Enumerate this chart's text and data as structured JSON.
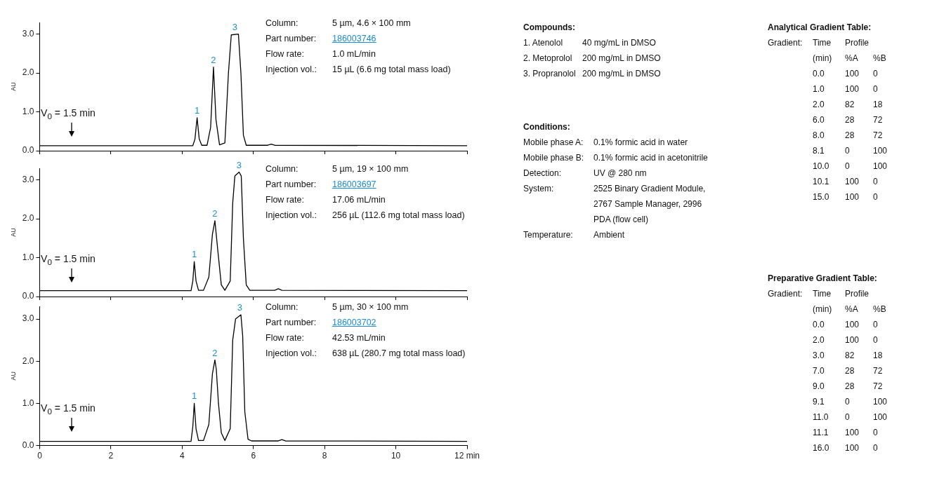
{
  "chart_data": [
    {
      "type": "line",
      "ylabel": "AU",
      "xlim": [
        0,
        12
      ],
      "xticks": [
        0,
        2,
        4,
        6,
        8,
        10,
        12
      ],
      "ylim": [
        0,
        3.3
      ],
      "yticks": [
        {
          "value": 0,
          "label": "0.0"
        },
        {
          "value": 1,
          "label": "1.0"
        },
        {
          "value": 2,
          "label": "2.0"
        },
        {
          "value": 3,
          "label": "3.0"
        }
      ],
      "tick_labels": "y",
      "grid": false,
      "legend": false,
      "series": [
        {
          "color": "#000000",
          "x": [
            0,
            4.3,
            4.36,
            4.42,
            4.48,
            4.55,
            4.7,
            4.8,
            4.88,
            4.95,
            5.05,
            5.2,
            5.3,
            5.38,
            5.58,
            5.65,
            5.72,
            5.8,
            6.4,
            6.5,
            6.6,
            12
          ],
          "values": [
            0.13,
            0.13,
            0.3,
            0.85,
            0.3,
            0.14,
            0.14,
            0.6,
            2.15,
            0.8,
            0.15,
            0.2,
            2.0,
            2.98,
            3.0,
            2.0,
            0.4,
            0.14,
            0.14,
            0.17,
            0.14,
            0.13
          ]
        }
      ],
      "annotations": [
        "V$_{0}$ = 1.5 min",
        "Column:\t5 µm, 4.6 × 100 mm",
        "Part number:\t186003746",
        "Flow rate:\t1.0 mL/min",
        "Injection vol.:\t15 µL (6.6 mg total mass load)",
        {
          "text": "1",
          "x": 4.42,
          "y": 0.85
        },
        {
          "text": "2",
          "x": 4.88,
          "y": 2.15
        },
        {
          "text": "3",
          "x": 5.48,
          "y": 3.0
        }
      ]
    },
    {
      "type": "line",
      "ylabel": "AU",
      "xlim": [
        0,
        12
      ],
      "xticks": [
        0,
        2,
        4,
        6,
        8,
        10,
        12
      ],
      "ylim": [
        0,
        3.3
      ],
      "yticks": [
        {
          "value": 0,
          "label": "0.0"
        },
        {
          "value": 1,
          "label": "1.0"
        },
        {
          "value": 2,
          "label": "2.0"
        },
        {
          "value": 3,
          "label": "3.0"
        }
      ],
      "tick_labels": "y",
      "grid": false,
      "legend": false,
      "series": [
        {
          "color": "#000000",
          "x": [
            0,
            4.25,
            4.3,
            4.34,
            4.39,
            4.46,
            4.6,
            4.75,
            4.85,
            4.92,
            5.0,
            5.1,
            5.2,
            5.35,
            5.42,
            5.48,
            5.6,
            5.66,
            5.72,
            5.8,
            5.9,
            6.6,
            6.7,
            6.8,
            12
          ],
          "values": [
            0.15,
            0.15,
            0.4,
            0.9,
            0.4,
            0.16,
            0.16,
            0.5,
            1.6,
            1.95,
            1.2,
            0.3,
            0.16,
            0.4,
            2.4,
            3.1,
            3.2,
            3.1,
            1.5,
            0.3,
            0.16,
            0.16,
            0.2,
            0.16,
            0.15
          ]
        }
      ],
      "annotations": [
        "V$_{0}$ = 1.5 min",
        "Column:\t5 µm, 19 × 100 mm",
        "Part number:\t186003697",
        "Flow rate:\t17.06 mL/min",
        "Injection vol.:\t256 µL (112.6 mg total mass load)",
        {
          "text": "1",
          "x": 4.34,
          "y": 0.9
        },
        {
          "text": "2",
          "x": 4.92,
          "y": 1.95
        },
        {
          "text": "3",
          "x": 5.6,
          "y": 3.2
        }
      ]
    },
    {
      "type": "line",
      "ylabel": "AU",
      "xlim": [
        0,
        12
      ],
      "xticks": [
        0,
        2,
        4,
        6,
        8,
        10,
        {
          "value": 12,
          "label": "12 min"
        }
      ],
      "ylim": [
        0,
        3.3
      ],
      "yticks": [
        {
          "value": 0,
          "label": "0.0"
        },
        {
          "value": 1,
          "label": "1.0"
        },
        {
          "value": 2,
          "label": "2.0"
        },
        {
          "value": 3,
          "label": "3.0"
        }
      ],
      "grid": false,
      "legend": false,
      "series": [
        {
          "color": "#000000",
          "x": [
            0,
            4.25,
            4.3,
            4.34,
            4.39,
            4.46,
            4.6,
            4.75,
            4.85,
            4.92,
            4.96,
            5.02,
            5.1,
            5.2,
            5.35,
            5.42,
            5.5,
            5.65,
            5.7,
            5.76,
            5.85,
            5.95,
            6.7,
            6.8,
            6.9,
            12
          ],
          "values": [
            0.1,
            0.1,
            0.45,
            1.0,
            0.4,
            0.12,
            0.12,
            0.5,
            1.7,
            2.03,
            1.8,
            1.0,
            0.3,
            0.12,
            0.4,
            2.5,
            3.0,
            3.1,
            2.6,
            0.8,
            0.15,
            0.11,
            0.11,
            0.14,
            0.11,
            0.1
          ]
        }
      ],
      "annotations": [
        "V$_{0}$ = 1.5 min",
        "Column:\t5 µm, 30 × 100 mm",
        "Part number:\t186003702",
        "Flow rate:\t42.53 mL/min",
        "Injection vol.:\t638 µL (280.7 mg total mass load)",
        {
          "text": "1",
          "x": 4.34,
          "y": 1.0
        },
        {
          "text": "2",
          "x": 4.92,
          "y": 2.03
        },
        {
          "text": "3",
          "x": 5.62,
          "y": 3.1
        }
      ]
    },
    {
      "type": "other",
      "title": "Compounds:",
      "annotations": [
        "1. Atenolol\t40 mg/mL in DMSO",
        "2. Metoprolol\t200 mg/mL in DMSO",
        "3. Propranolol\t200 mg/mL in DMSO"
      ]
    },
    {
      "type": "other",
      "title": "Conditions:",
      "annotations": [
        "Mobile phase A:\t0.1% formic acid in water",
        "Mobile phase B:\t0.1% formic acid in acetonitrile",
        "Detection:\tUV @ 280 nm",
        "System:\t2525 Binary Gradient Module,",
        "\t2767 Sample Manager, 2996",
        "\tPDA (flow cell)",
        "Temperature:\tAmbient"
      ]
    },
    {
      "type": "other",
      "title": "Analytical Gradient Table:",
      "annotations": [
        "Gradient:\tTime\tProfile",
        "\t(min)\t%A\t%B",
        "\t0.0\t100\t0",
        "\t1.0\t100\t0",
        "\t2.0\t82\t18",
        "\t6.0\t28\t72",
        "\t8.0\t28\t72",
        "\t8.1\t0\t100",
        "\t10.0\t0\t100",
        "\t10.1\t100\t0",
        "\t15.0\t100\t0"
      ]
    },
    {
      "type": "other",
      "title": "Preparative Gradient Table:",
      "annotations": [
        "Gradient:\tTime\tProfile",
        "\t(min)\t%A\t%B",
        "\t0.0\t100\t0",
        "\t2.0\t100\t0",
        "\t3.0\t82\t18",
        "\t7.0\t28\t72",
        "\t9.0\t28\t72",
        "\t9.1\t0\t100",
        "\t11.0\t0\t100",
        "\t11.1\t100\t0",
        "\t16.0\t100\t0"
      ]
    }
  ]
}
